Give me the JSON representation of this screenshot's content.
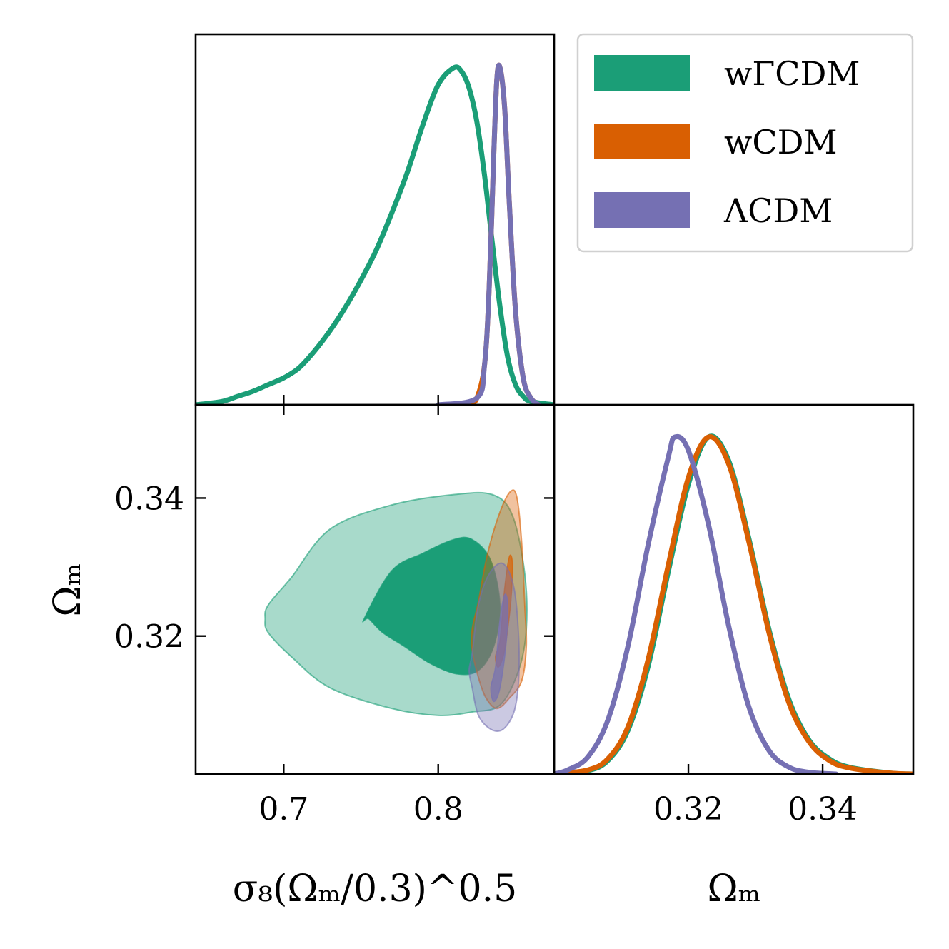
{
  "chart_data": {
    "type": "corner",
    "title": "",
    "parameters": [
      {
        "name": "sigma8_S8",
        "label": "σ₈(Ωₘ/0.3)^0.5",
        "range": [
          0.643,
          0.875
        ],
        "ticks": [
          "0.7",
          "0.8"
        ],
        "tick_values": [
          0.7,
          0.8
        ]
      },
      {
        "name": "Omega_m",
        "label": "Ωₘ",
        "range": [
          0.3,
          0.3535
        ],
        "ticks": [
          "0.32",
          "0.34"
        ],
        "tick_values": [
          0.32,
          0.34
        ]
      }
    ],
    "labels": {
      "x_left": "σ₈(Ωₘ/0.3)^0.5",
      "x_left_sup": "0.5",
      "x_right": "Ωₘ",
      "y_left": "Ωₘ"
    },
    "legend": {
      "placement": "top-right",
      "entries": [
        {
          "label": "wΓCDM",
          "color": "#1b9e77"
        },
        {
          "label": "wCDM",
          "color": "#d95f02"
        },
        {
          "label": "ΛCDM",
          "color": "#7570b3"
        }
      ]
    },
    "series": [
      {
        "name": "wΓCDM",
        "color": "#1b9e77",
        "marginal_sigma8": {
          "x": [
            0.643,
            0.66,
            0.67,
            0.68,
            0.69,
            0.7,
            0.71,
            0.72,
            0.73,
            0.74,
            0.75,
            0.76,
            0.77,
            0.78,
            0.79,
            0.8,
            0.81,
            0.815,
            0.82,
            0.825,
            0.83,
            0.835,
            0.84,
            0.845,
            0.85,
            0.855,
            0.86,
            0.875
          ],
          "y": [
            0.0,
            0.01,
            0.025,
            0.04,
            0.06,
            0.08,
            0.11,
            0.16,
            0.22,
            0.29,
            0.37,
            0.46,
            0.57,
            0.69,
            0.83,
            0.95,
            1.0,
            0.99,
            0.94,
            0.84,
            0.68,
            0.48,
            0.29,
            0.14,
            0.06,
            0.025,
            0.01,
            0.0
          ]
        },
        "marginal_omega_m": {
          "x": [
            0.3,
            0.305,
            0.308,
            0.311,
            0.314,
            0.317,
            0.32,
            0.323,
            0.326,
            0.329,
            0.332,
            0.335,
            0.338,
            0.341,
            0.344,
            0.35,
            0.3535
          ],
          "y": [
            0.0,
            0.01,
            0.04,
            0.13,
            0.32,
            0.6,
            0.86,
            1.0,
            0.93,
            0.7,
            0.43,
            0.22,
            0.1,
            0.045,
            0.02,
            0.003,
            0.0
          ]
        },
        "contour_1sigma": {
          "sigma8": [
            0.752,
            0.77,
            0.79,
            0.81,
            0.822,
            0.834,
            0.84,
            0.836,
            0.826,
            0.812,
            0.795,
            0.778,
            0.764,
            0.755,
            0.752
          ],
          "omega_m": [
            0.3225,
            0.3295,
            0.332,
            0.334,
            0.334,
            0.331,
            0.3245,
            0.3185,
            0.315,
            0.3145,
            0.316,
            0.3185,
            0.3205,
            0.3225,
            0.3225
          ]
        },
        "contour_2sigma": {
          "sigma8": [
            0.69,
            0.705,
            0.73,
            0.77,
            0.81,
            0.835,
            0.848,
            0.856,
            0.857,
            0.852,
            0.84,
            0.822,
            0.8,
            0.77,
            0.73,
            0.705,
            0.69,
            0.688,
            0.69
          ],
          "omega_m": [
            0.3245,
            0.3285,
            0.3355,
            0.339,
            0.3405,
            0.3405,
            0.3375,
            0.329,
            0.321,
            0.315,
            0.31,
            0.309,
            0.3085,
            0.3095,
            0.3125,
            0.317,
            0.3205,
            0.3225,
            0.3245
          ]
        }
      },
      {
        "name": "wCDM",
        "color": "#d95f02",
        "marginal_sigma8": {
          "x": [
            0.82,
            0.825,
            0.83,
            0.833,
            0.836,
            0.838,
            0.84,
            0.843,
            0.846,
            0.85,
            0.855,
            0.86,
            0.865
          ],
          "y": [
            0.0,
            0.02,
            0.12,
            0.35,
            0.75,
            0.97,
            1.0,
            0.88,
            0.6,
            0.28,
            0.08,
            0.02,
            0.0
          ]
        },
        "marginal_omega_m": {
          "x": [
            0.3,
            0.305,
            0.308,
            0.311,
            0.314,
            0.317,
            0.32,
            0.323,
            0.326,
            0.329,
            0.332,
            0.335,
            0.338,
            0.341,
            0.344,
            0.35,
            0.3535
          ],
          "y": [
            0.0,
            0.012,
            0.045,
            0.14,
            0.34,
            0.62,
            0.88,
            1.0,
            0.92,
            0.69,
            0.42,
            0.21,
            0.095,
            0.04,
            0.018,
            0.003,
            0.0
          ]
        },
        "contour_1sigma": {
          "sigma8": [
            0.84,
            0.843,
            0.846,
            0.848,
            0.847,
            0.843,
            0.839,
            0.837,
            0.84
          ],
          "omega_m": [
            0.3195,
            0.327,
            0.3315,
            0.3305,
            0.325,
            0.318,
            0.3155,
            0.317,
            0.3195
          ]
        },
        "contour_2sigma": {
          "sigma8": [
            0.826,
            0.832,
            0.84,
            0.847,
            0.851,
            0.854,
            0.856,
            0.857,
            0.854,
            0.846,
            0.838,
            0.831,
            0.826,
            0.822,
            0.822,
            0.826
          ],
          "omega_m": [
            0.325,
            0.332,
            0.338,
            0.341,
            0.34,
            0.3335,
            0.3245,
            0.3185,
            0.3135,
            0.311,
            0.3095,
            0.311,
            0.314,
            0.318,
            0.321,
            0.325
          ]
        }
      },
      {
        "name": "ΛCDM",
        "color": "#7570b3",
        "marginal_sigma8": {
          "x": [
            0.8,
            0.825,
            0.83,
            0.833,
            0.836,
            0.838,
            0.84,
            0.843,
            0.846,
            0.85,
            0.855,
            0.86,
            0.865
          ],
          "y": [
            0.0,
            0.02,
            0.12,
            0.35,
            0.75,
            0.97,
            1.0,
            0.88,
            0.6,
            0.28,
            0.08,
            0.02,
            0.0
          ]
        },
        "marginal_omega_m": {
          "x": [
            0.3,
            0.302,
            0.305,
            0.308,
            0.311,
            0.314,
            0.317,
            0.318,
            0.32,
            0.323,
            0.326,
            0.329,
            0.332,
            0.335,
            0.338,
            0.341,
            0.342
          ],
          "y": [
            0.0,
            0.012,
            0.05,
            0.16,
            0.38,
            0.68,
            0.94,
            1.0,
            0.96,
            0.74,
            0.44,
            0.2,
            0.07,
            0.02,
            0.005,
            0.001,
            0.0
          ]
        },
        "contour_1sigma": {
          "sigma8": [
            0.837,
            0.84,
            0.843,
            0.845,
            0.844,
            0.84,
            0.836,
            0.834,
            0.837
          ],
          "omega_m": [
            0.3155,
            0.3225,
            0.326,
            0.3245,
            0.319,
            0.3125,
            0.3105,
            0.3125,
            0.3155
          ]
        },
        "contour_2sigma": {
          "sigma8": [
            0.822,
            0.826,
            0.833,
            0.842,
            0.849,
            0.852,
            0.852,
            0.849,
            0.842,
            0.834,
            0.826,
            0.822,
            0.82,
            0.822
          ],
          "omega_m": [
            0.3175,
            0.3245,
            0.329,
            0.3305,
            0.327,
            0.32,
            0.3135,
            0.309,
            0.3065,
            0.3065,
            0.3085,
            0.3125,
            0.315,
            0.3175
          ]
        }
      }
    ],
    "grid": false
  }
}
